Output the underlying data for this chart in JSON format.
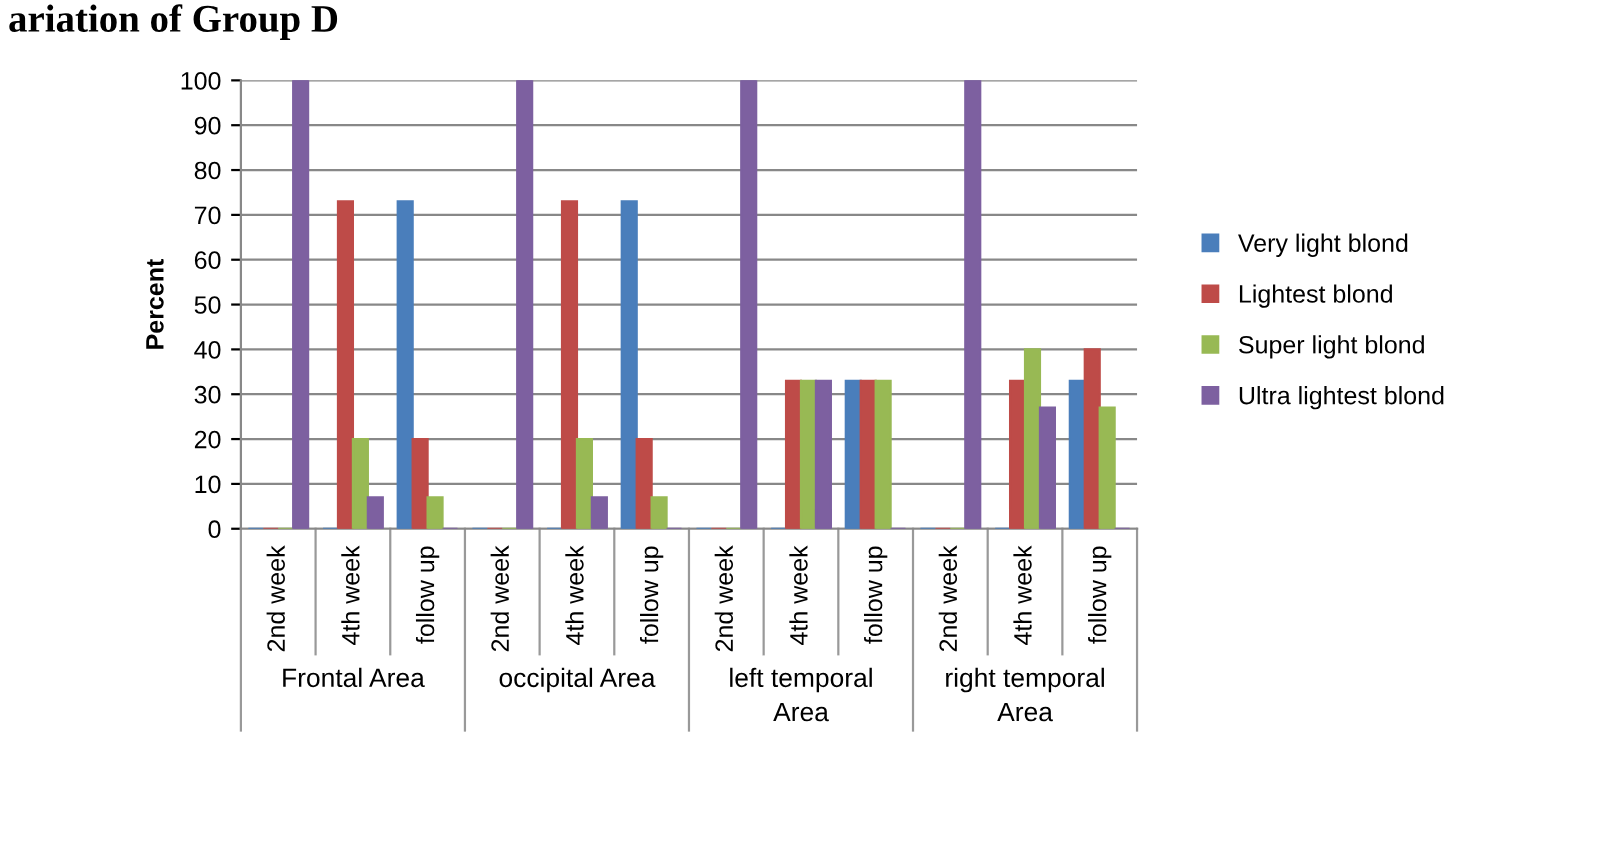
{
  "chart_data": {
    "type": "bar",
    "title": "ariation of Group D",
    "ylabel": "Percent",
    "categories": [
      "2nd week",
      "4th week",
      "follow up",
      "2nd week",
      "4th week",
      "follow up",
      "2nd week",
      "4th week",
      "follow up",
      "2nd week",
      "4th week",
      "follow up"
    ],
    "series": [
      {
        "name": "Very light blond",
        "color": "#4a7ebb",
        "values": [
          0,
          0,
          73,
          0,
          0,
          73,
          0,
          0,
          33,
          0,
          0,
          33
        ]
      },
      {
        "name": "Lightest blond",
        "color": "#be4b48",
        "values": [
          0,
          73,
          20,
          0,
          73,
          20,
          0,
          33,
          33,
          0,
          33,
          40
        ]
      },
      {
        "name": "Super light blond",
        "color": "#98b954",
        "values": [
          0,
          20,
          7,
          0,
          20,
          7,
          0,
          33,
          33,
          0,
          40,
          27
        ]
      },
      {
        "name": "Ultra lightest blond",
        "color": "#7d60a0",
        "values": [
          100,
          7,
          0,
          100,
          7,
          0,
          100,
          33,
          0,
          100,
          27,
          0
        ]
      }
    ],
    "annotations": [
      "Frontal Area",
      "occipital Area",
      "left temporal Area",
      "right temporal Area"
    ],
    "ylim": [
      0,
      100
    ],
    "yticks": [
      0,
      10,
      20,
      30,
      40,
      50,
      60,
      70,
      80,
      90,
      100
    ],
    "grid": "y",
    "legend": "right"
  }
}
